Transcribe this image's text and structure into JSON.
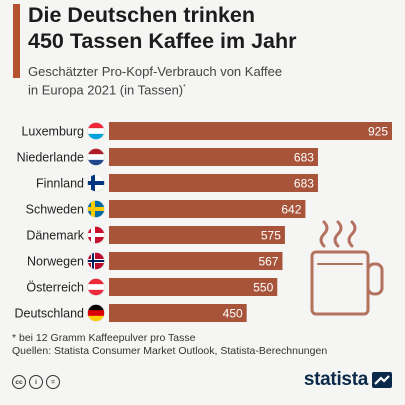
{
  "header": {
    "title_line1": "Die Deutschen trinken",
    "title_line2": "450 Tassen Kaffee im Jahr",
    "subtitle_line1": "Geschätzter Pro-Kopf-Verbrauch von Kaffee",
    "subtitle_line2": "in Europa 2021 (in Tassen)",
    "subtitle_mark": "*"
  },
  "chart_data": {
    "type": "bar",
    "orientation": "horizontal",
    "categories": [
      "Luxemburg",
      "Niederlande",
      "Finnland",
      "Schweden",
      "Dänemark",
      "Norwegen",
      "Österreich",
      "Deutschland"
    ],
    "values": [
      925,
      683,
      683,
      642,
      575,
      567,
      550,
      450
    ],
    "xlim": [
      0,
      925
    ],
    "bar_color": "#a8543a",
    "value_label_color": "#ffffff",
    "grid": false,
    "legend": "none"
  },
  "flags": [
    "luxembourg-flag",
    "netherlands-flag",
    "finland-flag",
    "sweden-flag",
    "denmark-flag",
    "norway-flag",
    "austria-flag",
    "germany-flag"
  ],
  "footer": {
    "footnote": "* bei 12 Gramm Kaffeepulver pro Tasse",
    "source": "Quellen: Statista Consumer Market Outlook, Statista-Berechnungen",
    "license_icons": [
      "cc",
      "i",
      "="
    ],
    "brand": "statista"
  },
  "colors": {
    "accent": "#b5532f",
    "brand": "#0b2a4a",
    "mug": "#b3725f"
  }
}
